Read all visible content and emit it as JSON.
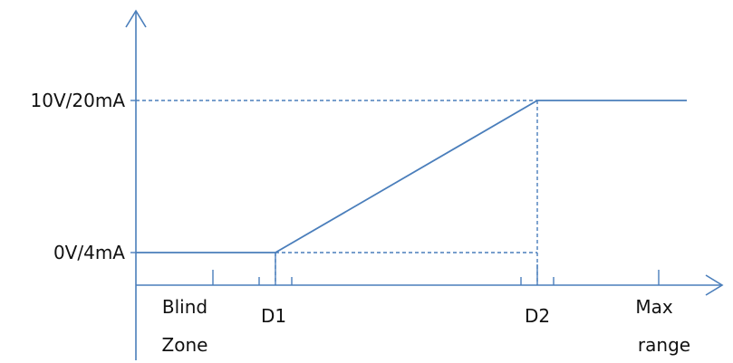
{
  "chart_data": {
    "type": "line",
    "title": "",
    "xlabel": "",
    "ylabel": "",
    "y_levels": {
      "low": "0V/4mA",
      "high": "10V/20mA"
    },
    "x_markers": {
      "blind_zone": [
        "Blind",
        "Zone"
      ],
      "d1": "D1",
      "d2": "D2",
      "max_range": [
        "Max",
        "range"
      ]
    },
    "series": [
      {
        "points": [
          {
            "x": "0",
            "y": "0V/4mA"
          },
          {
            "x": "D1",
            "y": "0V/4mA"
          },
          {
            "x": "D2",
            "y": "10V/20mA"
          },
          {
            "x": "Max range",
            "y": "10V/20mA"
          }
        ]
      }
    ],
    "grid": false,
    "legend": false
  },
  "colors": {
    "line": "#4a7ebb",
    "text": "#111111",
    "background": "#ffffff"
  }
}
